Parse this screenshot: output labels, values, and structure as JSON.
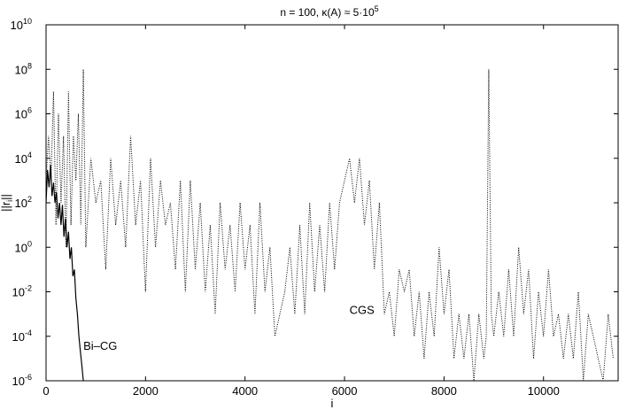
{
  "chart_data": {
    "type": "line",
    "title": {
      "prefix": "n = 100,  κ(A) ≈ 5·10",
      "exponent": "5"
    },
    "xlabel": "i",
    "ylabel": "||r",
    "ylabel_sub": "i",
    "ylabel_suffix": "||",
    "xlim": [
      0,
      11500
    ],
    "ylim_log10": [
      -6,
      10
    ],
    "yscale": "log",
    "grid": false,
    "x_ticks": [
      {
        "value": 0,
        "label": "0"
      },
      {
        "value": 2000,
        "label": "2000"
      },
      {
        "value": 4000,
        "label": "4000"
      },
      {
        "value": 6000,
        "label": "6000"
      },
      {
        "value": 8000,
        "label": "8000"
      },
      {
        "value": 10000,
        "label": "10000"
      }
    ],
    "y_ticks": [
      {
        "value": 10000000000.0,
        "base": "10",
        "exp": "10"
      },
      {
        "value": 100000000.0,
        "base": "10",
        "exp": "8"
      },
      {
        "value": 1000000.0,
        "base": "10",
        "exp": "6"
      },
      {
        "value": 10000.0,
        "base": "10",
        "exp": "4"
      },
      {
        "value": 100.0,
        "base": "10",
        "exp": "2"
      },
      {
        "value": 1,
        "base": "10",
        "exp": "0"
      },
      {
        "value": 0.01,
        "base": "10",
        "exp": "-2"
      },
      {
        "value": 0.0001,
        "base": "10",
        "exp": "-4"
      },
      {
        "value": 1e-06,
        "base": "10",
        "exp": "-6"
      }
    ],
    "annotations": [
      {
        "text": "Bi–CG",
        "x": 750,
        "y": 2.5e-05
      },
      {
        "text": "CGS",
        "x": 6100,
        "y": 0.001
      }
    ],
    "series": [
      {
        "name": "Bi–CG",
        "style": "solid",
        "color": "#000000",
        "x": [
          0,
          30,
          60,
          90,
          120,
          150,
          180,
          210,
          240,
          270,
          300,
          330,
          360,
          390,
          420,
          450,
          480,
          510,
          540,
          570,
          600,
          630,
          660,
          690,
          720,
          750
        ],
        "y": [
          100,
          3000,
          500,
          5000,
          200,
          800,
          100,
          300,
          20,
          100,
          10,
          80,
          3,
          20,
          1,
          5,
          0.3,
          1,
          0.05,
          0.1,
          0.005,
          0.001,
          0.0001,
          2e-05,
          5e-06,
          1e-06
        ]
      },
      {
        "name": "CGS",
        "style": "dotted",
        "color": "#000000",
        "x": [
          0,
          50,
          100,
          150,
          200,
          250,
          300,
          350,
          400,
          450,
          500,
          550,
          600,
          650,
          700,
          750,
          800,
          900,
          1000,
          1100,
          1200,
          1300,
          1400,
          1500,
          1600,
          1700,
          1800,
          1900,
          2000,
          2100,
          2200,
          2300,
          2400,
          2500,
          2600,
          2700,
          2800,
          2900,
          3000,
          3100,
          3200,
          3300,
          3400,
          3500,
          3600,
          3700,
          3800,
          3900,
          4000,
          4100,
          4200,
          4300,
          4400,
          4500,
          4600,
          4700,
          4800,
          4900,
          5000,
          5100,
          5200,
          5300,
          5400,
          5500,
          5600,
          5700,
          5800,
          5900,
          6000,
          6100,
          6200,
          6300,
          6400,
          6500,
          6600,
          6700,
          6800,
          6900,
          7000,
          7100,
          7200,
          7300,
          7400,
          7500,
          7600,
          7700,
          7800,
          7900,
          8000,
          8100,
          8200,
          8300,
          8400,
          8500,
          8600,
          8700,
          8800,
          8850,
          8900,
          8950,
          9000,
          9100,
          9200,
          9300,
          9400,
          9500,
          9600,
          9700,
          9800,
          9900,
          10000,
          10100,
          10200,
          10300,
          10400,
          10500,
          10600,
          10700,
          10800,
          10900,
          11000,
          11100,
          11200,
          11300,
          11400
        ],
        "y": [
          1000,
          100000,
          1000,
          10000000,
          10,
          1000000,
          100,
          100000,
          1,
          10000000,
          10,
          100000,
          1000,
          1000000,
          10,
          100000000,
          1,
          10000,
          100,
          1000,
          0.1,
          10000,
          10,
          1000,
          1,
          100000,
          10,
          1000,
          0.01,
          10000,
          1,
          1000,
          10,
          100,
          0.1,
          1000,
          0.01,
          1000,
          0.1,
          100,
          0.01,
          10,
          0.001,
          100,
          0.1,
          10,
          0.01,
          100,
          0.1,
          10,
          0.001,
          100,
          0.01,
          1,
          0.0001,
          0.001,
          0.01,
          1,
          0.001,
          10,
          0.001,
          100,
          0.01,
          10,
          0.01,
          100,
          0.1,
          100,
          1000,
          10000,
          100,
          10000,
          10,
          1000,
          0.1,
          100,
          0.001,
          0.01,
          0.0001,
          0.1,
          0.01,
          0.1,
          0.0001,
          0.01,
          1e-05,
          0.01,
          0.0001,
          1,
          0.001,
          0.1,
          1e-05,
          0.001,
          1e-05,
          0.001,
          1e-06,
          0.001,
          1e-05,
          0.0001,
          100000000,
          0.001,
          0.0001,
          0.01,
          0.0001,
          0.1,
          0.0001,
          1,
          0.001,
          0.1,
          1e-05,
          0.01,
          0.0001,
          0.1,
          0.0001,
          0.001,
          1e-05,
          0.001,
          1e-05,
          0.01,
          1e-06,
          0.001,
          0.0001,
          1e-05,
          1e-06,
          0.001,
          1e-05
        ]
      }
    ]
  }
}
